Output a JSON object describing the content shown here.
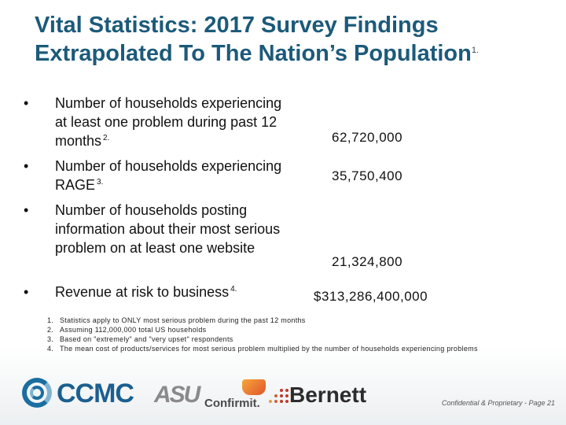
{
  "title": {
    "line1": "Vital Statistics: 2017 Survey Findings",
    "line2": "Extrapolated To The Nation’s Population",
    "footnote": "1."
  },
  "bullets": [
    {
      "dot": "•",
      "text": "Number of households experiencing at least one problem during past 12 months",
      "note": "2.",
      "value": "62,720,000"
    },
    {
      "dot": "•",
      "text": "Number of households experiencing RAGE",
      "note": "3.",
      "value": "35,750,400"
    },
    {
      "dot": "•",
      "text": "Number of households posting information about their most serious problem on at least one website",
      "note": "",
      "value": "21,324,800"
    },
    {
      "dot": "•",
      "text": "Revenue at risk to business",
      "note": "4.",
      "value": "$313,286,400,000"
    }
  ],
  "notes": [
    {
      "num": "1.",
      "text": "Statistics apply to ONLY most serious problem during the past 12 months"
    },
    {
      "num": "2.",
      "text": "Assuming 112,000,000 total US households"
    },
    {
      "num": "3.",
      "text": "Based on \"extremely\" and \"very upset\" respondents"
    },
    {
      "num": "4.",
      "text": "The mean cost of products/services for most serious problem multiplied by the number of households experiencing problems"
    }
  ],
  "logos": {
    "ccmc": "CCMC",
    "asu": "ASU",
    "confirmit": "Confirmit.",
    "bernett": "Bernett"
  },
  "footer": "Confidential & Proprietary - Page 21"
}
